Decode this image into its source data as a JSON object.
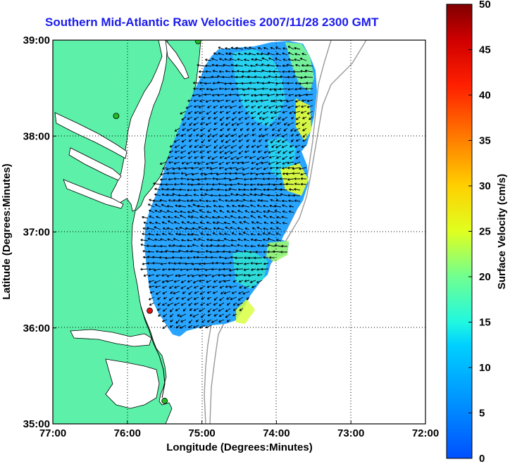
{
  "title": "Southern Mid-Atlantic Raw Velocities 2007/11/28 2300 GMT",
  "x_axis": {
    "label": "Longitude (Degrees:Minutes)",
    "ticks": [
      "77:00",
      "76:00",
      "75:00",
      "74:00",
      "73:00",
      "72:00"
    ]
  },
  "y_axis": {
    "label": "Latitude (Degrees:Minutes)",
    "ticks": [
      "39:00",
      "38:00",
      "37:00",
      "36:00",
      "35:00"
    ]
  },
  "colorbar": {
    "label": "Surface Velocity (cm/s)",
    "ticks": [
      "0",
      "5",
      "10",
      "15",
      "20",
      "25",
      "30",
      "35",
      "40",
      "45",
      "50"
    ],
    "range": [
      0,
      50
    ],
    "colormap": "jet"
  },
  "map": {
    "lon_range": [
      -77,
      -72
    ],
    "lat_range": [
      35,
      39
    ],
    "land_color": "#5cf0a8",
    "grid": "dotted",
    "stations": [
      {
        "lon": -75.05,
        "lat": 38.99,
        "color": "#22bb22"
      },
      {
        "lon": -76.15,
        "lat": 38.21,
        "color": "#22bb22"
      },
      {
        "lon": -75.7,
        "lat": 36.18,
        "color": "#dd1111"
      },
      {
        "lon": -75.5,
        "lat": 35.24,
        "color": "#22bb22"
      }
    ]
  }
}
